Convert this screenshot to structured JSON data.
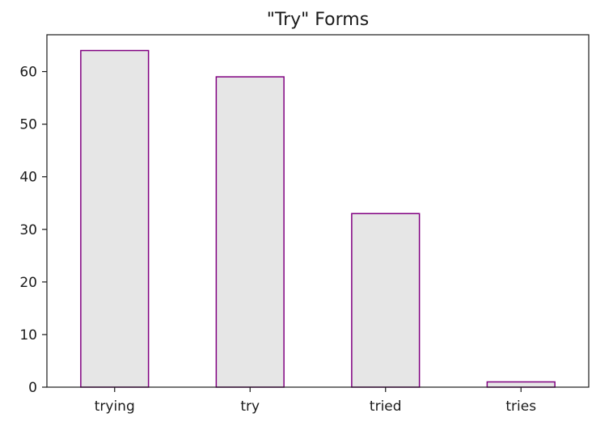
{
  "chart_data": {
    "type": "bar",
    "title": "\"Try\" Forms",
    "xlabel": "",
    "ylabel": "",
    "categories": [
      "trying",
      "try",
      "tried",
      "tries"
    ],
    "values": [
      64,
      59,
      33,
      1
    ],
    "ylim": [
      0,
      67
    ],
    "yticks": [
      0,
      10,
      20,
      30,
      40,
      50,
      60
    ],
    "grid": false,
    "legend": "none",
    "colors": {
      "bar_fill": "#e6e6e6",
      "bar_edge": "#800080",
      "axes": "#1a1a1a"
    }
  }
}
